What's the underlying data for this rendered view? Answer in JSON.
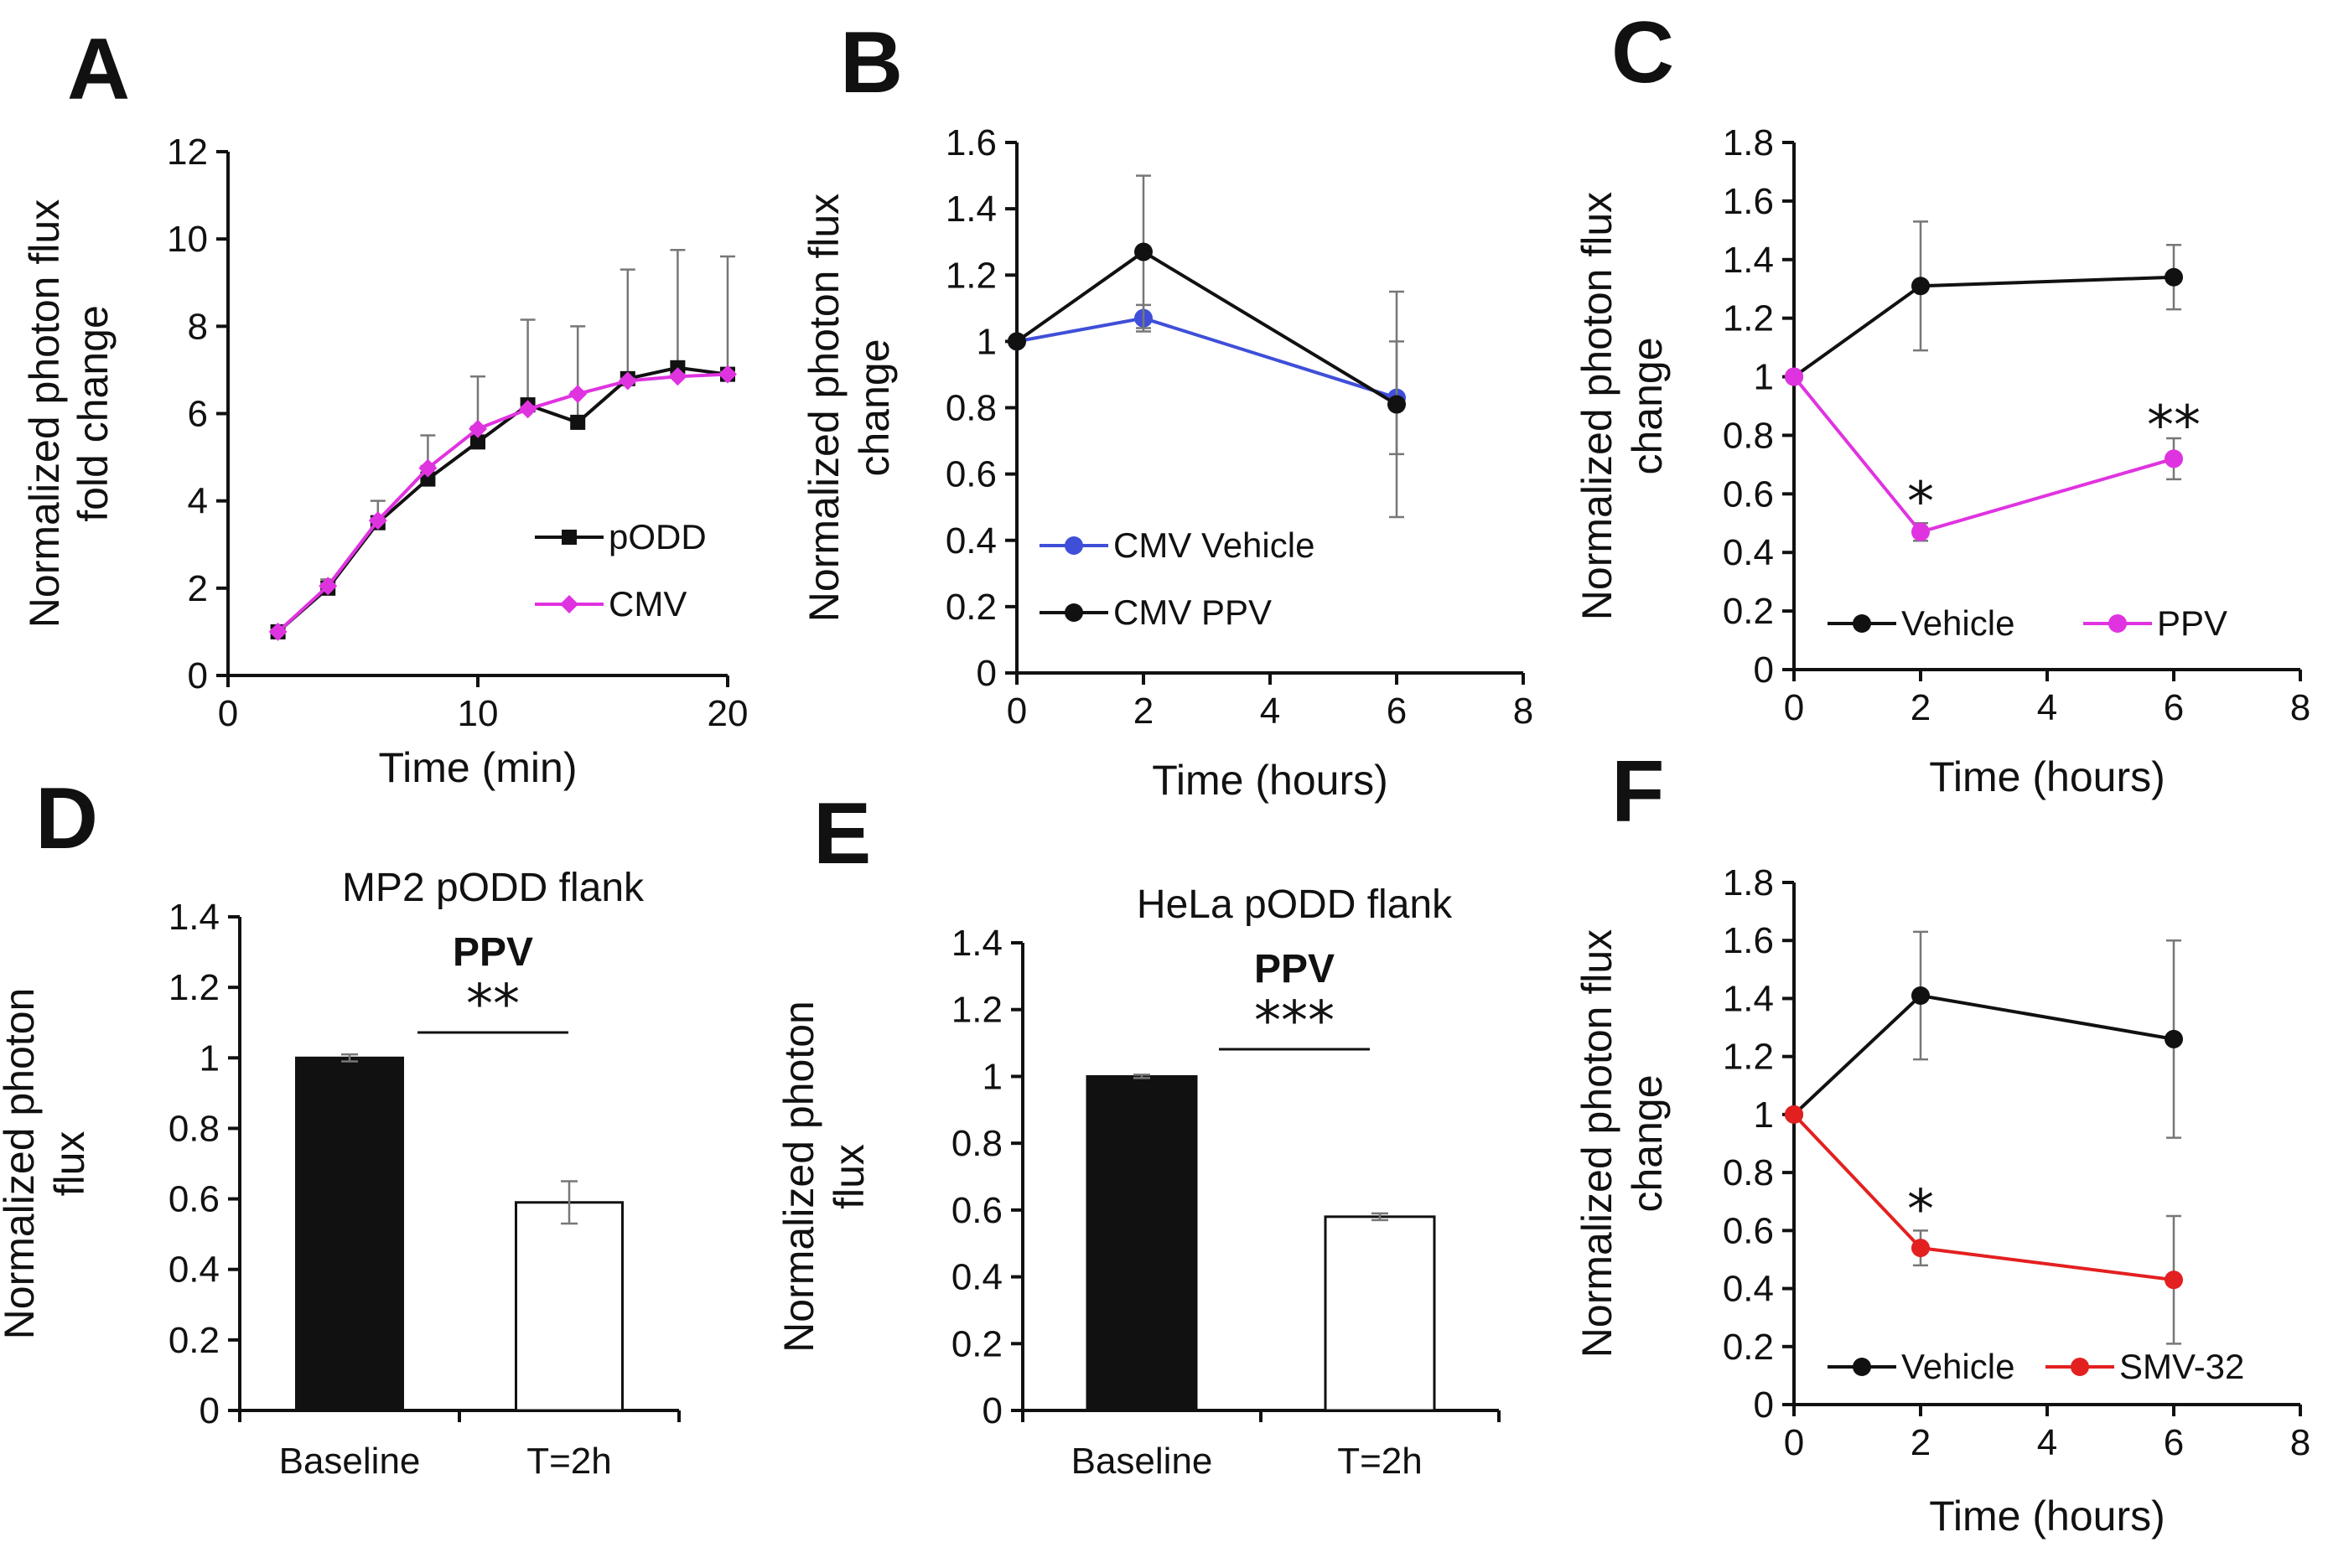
{
  "colors": {
    "black": "#111111",
    "magenta": "#e033e0",
    "blue": "#3f4fd8",
    "red": "#e32020",
    "white": "#ffffff"
  },
  "chart_data": [
    {
      "panel": "A",
      "type": "line",
      "title": "",
      "xlabel": "Time (min)",
      "ylabel": [
        "Normalized photon flux",
        "fold change"
      ],
      "xlim": [
        0,
        20
      ],
      "ylim": [
        0,
        12
      ],
      "xticks": [
        0,
        10,
        20
      ],
      "yticks": [
        0,
        2,
        4,
        6,
        8,
        10,
        12
      ],
      "legend_position": "bottom-right",
      "legend_style": "stacked",
      "series": [
        {
          "name": "pODD",
          "color": "#111111",
          "marker": "square",
          "x": [
            2,
            4,
            6,
            8,
            10,
            12,
            14,
            16,
            18,
            20
          ],
          "y": [
            1.0,
            2.0,
            3.5,
            4.5,
            5.35,
            6.2,
            5.8,
            6.8,
            7.05,
            6.9
          ],
          "err": [
            0.1,
            0.2,
            0.5,
            1.0,
            1.5,
            1.95,
            2.2,
            2.5,
            2.7,
            2.7
          ]
        },
        {
          "name": "CMV",
          "color": "#e033e0",
          "marker": "diamond",
          "x": [
            2,
            4,
            6,
            8,
            10,
            12,
            14,
            16,
            18,
            20
          ],
          "y": [
            1.0,
            2.05,
            3.55,
            4.75,
            5.65,
            6.1,
            6.45,
            6.75,
            6.85,
            6.9
          ],
          "err": [
            0.05,
            0.05,
            0.05,
            0.05,
            0.05,
            0.05,
            0.05,
            0.05,
            0.05,
            0.05
          ]
        }
      ],
      "annotations": []
    },
    {
      "panel": "B",
      "type": "line",
      "title": "",
      "xlabel": "Time (hours)",
      "ylabel": [
        "Normalized photon flux",
        "change"
      ],
      "xlim": [
        0,
        8
      ],
      "ylim": [
        0,
        1.6
      ],
      "xticks": [
        0,
        2,
        4,
        6,
        8
      ],
      "yticks": [
        0,
        0.2,
        0.4,
        0.6,
        0.8,
        1,
        1.2,
        1.4,
        1.6
      ],
      "legend_position": "bottom-left",
      "legend_style": "stacked",
      "series": [
        {
          "name": "CMV Vehicle",
          "color": "#3f4fd8",
          "marker": "circle",
          "x": [
            0,
            2,
            6
          ],
          "y": [
            1.0,
            1.07,
            0.83
          ],
          "err": [
            0,
            0.04,
            0.17
          ]
        },
        {
          "name": "CMV PPV",
          "color": "#111111",
          "marker": "circle",
          "x": [
            0,
            2,
            6
          ],
          "y": [
            1.0,
            1.27,
            0.81
          ],
          "err": [
            0,
            0.23,
            0.34
          ]
        }
      ],
      "annotations": []
    },
    {
      "panel": "C",
      "type": "line",
      "title": "",
      "xlabel": "Time (hours)",
      "ylabel": [
        "Normalized photon flux",
        "change"
      ],
      "xlim": [
        0,
        8
      ],
      "ylim": [
        0,
        1.8
      ],
      "xticks": [
        0,
        2,
        4,
        6,
        8
      ],
      "yticks": [
        0,
        0.2,
        0.4,
        0.6,
        0.8,
        1,
        1.2,
        1.4,
        1.6,
        1.8
      ],
      "legend_position": "bottom",
      "legend_style": "inline",
      "series": [
        {
          "name": "Vehicle",
          "color": "#111111",
          "marker": "circle",
          "x": [
            0,
            2,
            6
          ],
          "y": [
            1.0,
            1.31,
            1.34
          ],
          "err": [
            0,
            0.22,
            0.11
          ]
        },
        {
          "name": "PPV",
          "color": "#e033e0",
          "marker": "circle",
          "x": [
            0,
            2,
            6
          ],
          "y": [
            1.0,
            0.47,
            0.72
          ],
          "err": [
            0,
            0.03,
            0.07
          ]
        }
      ],
      "annotations": [
        {
          "text": "*",
          "x": 2,
          "y": 0.62
        },
        {
          "text": "**",
          "x": 6,
          "y": 0.88
        }
      ]
    },
    {
      "panel": "D",
      "type": "bar",
      "title": "MP2 pODD flank",
      "subtitle": "PPV",
      "xlabel": "",
      "ylabel": [
        "Normalized photon",
        "flux"
      ],
      "ylim": [
        0,
        1.4
      ],
      "yticks": [
        0,
        0.2,
        0.4,
        0.6,
        0.8,
        1,
        1.2,
        1.4
      ],
      "categories": [
        "Baseline",
        "T=2h"
      ],
      "values": [
        1.0,
        0.59
      ],
      "err": [
        0.01,
        0.06
      ],
      "bar_colors": [
        "#111111",
        "#ffffff"
      ],
      "significance": "**"
    },
    {
      "panel": "E",
      "type": "bar",
      "title": "HeLa pODD flank",
      "subtitle": "PPV",
      "xlabel": "",
      "ylabel": [
        "Normalized photon",
        "flux"
      ],
      "ylim": [
        0,
        1.4
      ],
      "yticks": [
        0,
        0.2,
        0.4,
        0.6,
        0.8,
        1,
        1.2,
        1.4
      ],
      "categories": [
        "Baseline",
        "T=2h"
      ],
      "values": [
        1.0,
        0.58
      ],
      "err": [
        0.005,
        0.01
      ],
      "bar_colors": [
        "#111111",
        "#ffffff"
      ],
      "significance": "***"
    },
    {
      "panel": "F",
      "type": "line",
      "title": "",
      "xlabel": "Time (hours)",
      "ylabel": [
        "Normalized photon flux",
        "change"
      ],
      "xlim": [
        0,
        8
      ],
      "ylim": [
        0,
        1.8
      ],
      "xticks": [
        0,
        2,
        4,
        6,
        8
      ],
      "yticks": [
        0,
        0.2,
        0.4,
        0.6,
        0.8,
        1,
        1.2,
        1.4,
        1.6,
        1.8
      ],
      "legend_position": "bottom",
      "legend_style": "inline",
      "series": [
        {
          "name": "Vehicle",
          "color": "#111111",
          "marker": "circle",
          "x": [
            0,
            2,
            6
          ],
          "y": [
            1.0,
            1.41,
            1.26
          ],
          "err": [
            0,
            0.22,
            0.34
          ]
        },
        {
          "name": "SMV-32",
          "color": "#e32020",
          "marker": "circle",
          "x": [
            0,
            2,
            6
          ],
          "y": [
            1.0,
            0.54,
            0.43
          ],
          "err": [
            0,
            0.06,
            0.22
          ]
        }
      ],
      "annotations": [
        {
          "text": "*",
          "x": 2,
          "y": 0.72
        }
      ]
    }
  ]
}
